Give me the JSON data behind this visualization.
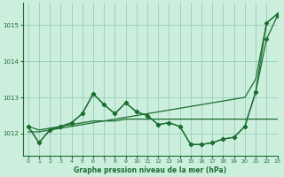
{
  "background_color": "#cceedd",
  "grid_color": "#99ccbb",
  "line_color": "#1a6e30",
  "text_color": "#1a6e30",
  "xlabel": "Graphe pression niveau de la mer (hPa)",
  "ylim": [
    1011.4,
    1015.6
  ],
  "xlim": [
    -0.5,
    23
  ],
  "yticks": [
    1012,
    1013,
    1014,
    1015
  ],
  "xticks": [
    0,
    1,
    2,
    3,
    4,
    5,
    6,
    7,
    8,
    9,
    10,
    11,
    12,
    13,
    14,
    15,
    16,
    17,
    18,
    19,
    20,
    21,
    22,
    23
  ],
  "series": [
    {
      "y": [
        1012.2,
        1011.75,
        1012.1,
        1012.2,
        1012.3,
        1012.55,
        1013.1,
        1012.8,
        1012.55,
        1012.85,
        1012.6,
        1012.5,
        1012.25,
        1012.3,
        1012.2,
        1011.7,
        1011.7,
        1011.75,
        1011.85,
        1011.9,
        1012.2,
        1013.15,
        1014.6,
        1015.25
      ],
      "marker": "D",
      "markersize": 2.5,
      "linewidth": 0.9
    },
    {
      "y": [
        1012.2,
        1011.75,
        1012.1,
        1012.2,
        1012.3,
        1012.55,
        1013.1,
        1012.8,
        1012.55,
        1012.85,
        1012.6,
        1012.5,
        1012.25,
        1012.3,
        1012.2,
        1011.7,
        1011.7,
        1011.75,
        1011.85,
        1011.9,
        1012.2,
        1013.15,
        1015.05,
        1015.3
      ],
      "marker": "D",
      "markersize": 2.5,
      "linewidth": 0.9
    },
    {
      "y": [
        1012.05,
        1012.05,
        1012.1,
        1012.15,
        1012.2,
        1012.25,
        1012.3,
        1012.35,
        1012.4,
        1012.45,
        1012.5,
        1012.55,
        1012.6,
        1012.65,
        1012.7,
        1012.75,
        1012.8,
        1012.85,
        1012.9,
        1012.95,
        1013.0,
        1013.5,
        1015.05,
        1015.3
      ],
      "marker": null,
      "markersize": 0,
      "linewidth": 0.9
    },
    {
      "y": [
        1012.2,
        1012.1,
        1012.15,
        1012.2,
        1012.25,
        1012.3,
        1012.35,
        1012.35,
        1012.35,
        1012.4,
        1012.4,
        1012.4,
        1012.4,
        1012.4,
        1012.4,
        1012.4,
        1012.4,
        1012.4,
        1012.4,
        1012.4,
        1012.4,
        1012.4,
        1012.4,
        1012.4
      ],
      "marker": null,
      "markersize": 0,
      "linewidth": 0.9
    }
  ]
}
